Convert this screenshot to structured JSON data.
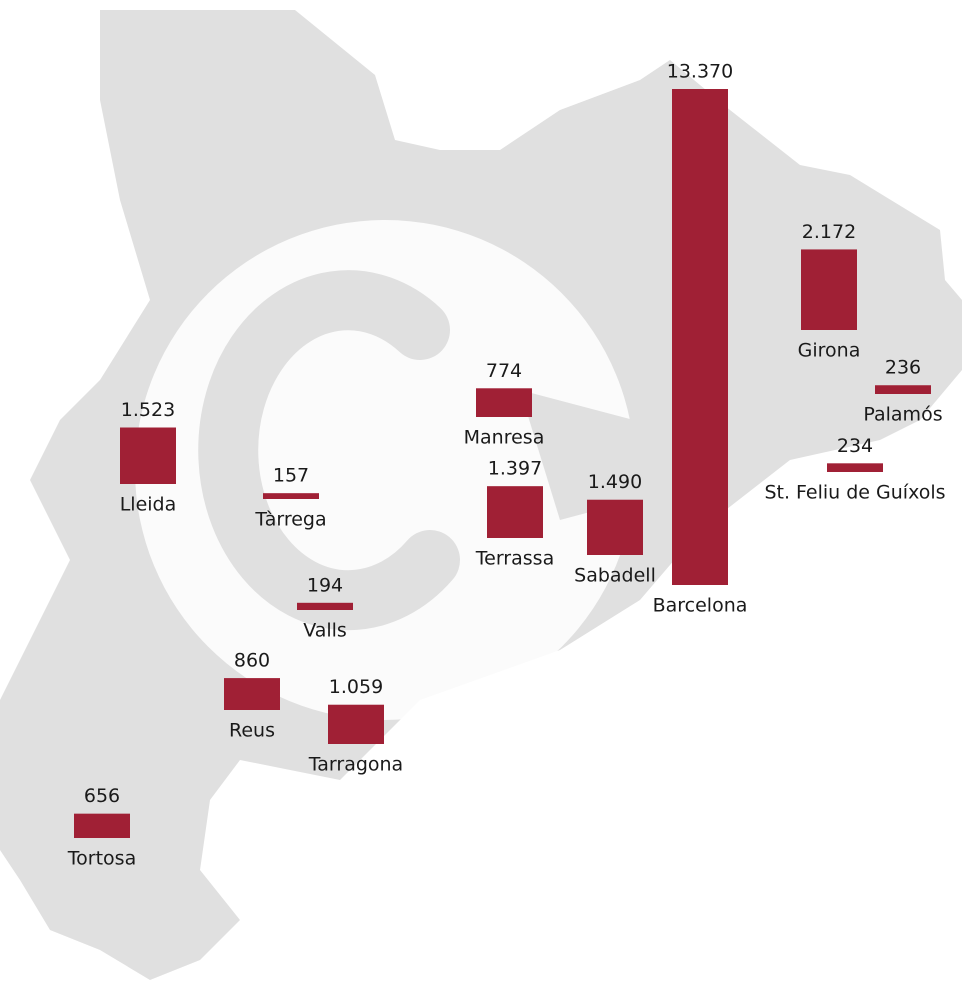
{
  "chart_data": {
    "type": "bar",
    "categories": [
      "Barcelona",
      "Girona",
      "Palamós",
      "St. Feliu de Guíxols",
      "Manresa",
      "Terrassa",
      "Sabadell",
      "Lleida",
      "Tàrrega",
      "Valls",
      "Reus",
      "Tarragona",
      "Tortosa"
    ],
    "values": [
      13370,
      2172,
      236,
      234,
      774,
      1397,
      1490,
      1523,
      157,
      194,
      860,
      1059,
      656
    ],
    "value_labels": [
      "13.370",
      "2.172",
      "236",
      "234",
      "774",
      "1.397",
      "1.490",
      "1.523",
      "157",
      "194",
      "860",
      "1.059",
      "656"
    ],
    "color": "#a02035"
  }
}
